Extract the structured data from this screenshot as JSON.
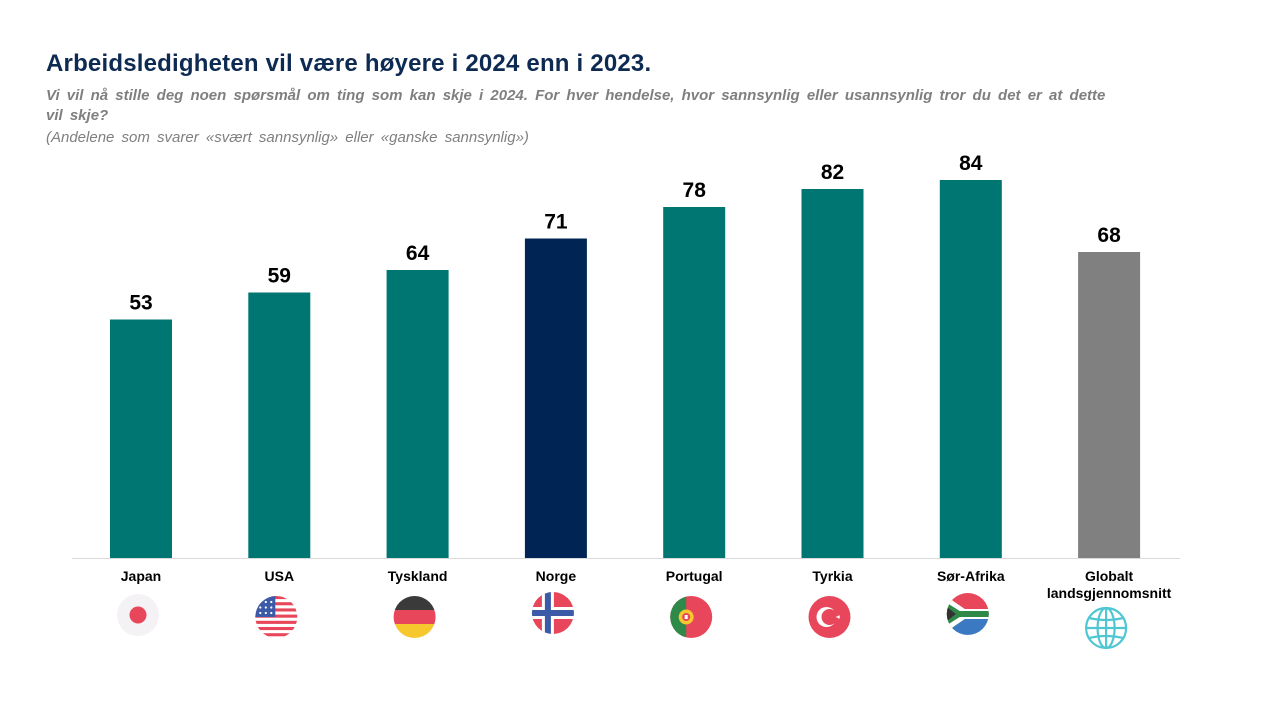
{
  "header": {
    "title": "Arbeidsledigheten vil være høyere i 2024 enn i 2023.",
    "subtitle": "Vi vil nå stille deg noen spørsmål om ting som kan skje i 2024. For hver hendelse, hvor sannsynlig eller usannsynlig tror du det er at dette vil skje?",
    "note": "(Andelene som svarer «svært sannsynlig» eller «ganske sannsynlig»)"
  },
  "chart_data": {
    "type": "bar",
    "title": "Arbeidsledigheten vil være høyere i 2024 enn i 2023.",
    "categories": [
      "Japan",
      "USA",
      "Tyskland",
      "Norge",
      "Portugal",
      "Tyrkia",
      "Sør-Afrika",
      "Globalt landsgjennomsnitt"
    ],
    "values": [
      53,
      59,
      64,
      71,
      78,
      82,
      84,
      68
    ],
    "value_labels": [
      "53",
      "59",
      "64",
      "71",
      "78",
      "82",
      "84",
      "68"
    ],
    "colors": [
      "#007672",
      "#007672",
      "#007672",
      "#002554",
      "#007672",
      "#007672",
      "#007672",
      "#808080"
    ],
    "icons": [
      "japan-flag-icon",
      "usa-flag-icon",
      "germany-flag-icon",
      "norway-flag-icon",
      "portugal-flag-icon",
      "turkey-flag-icon",
      "south-africa-flag-icon",
      "globe-icon"
    ],
    "xlabel": "",
    "ylabel": "",
    "ylim": [
      0,
      100
    ],
    "grid": false,
    "legend": "none"
  }
}
